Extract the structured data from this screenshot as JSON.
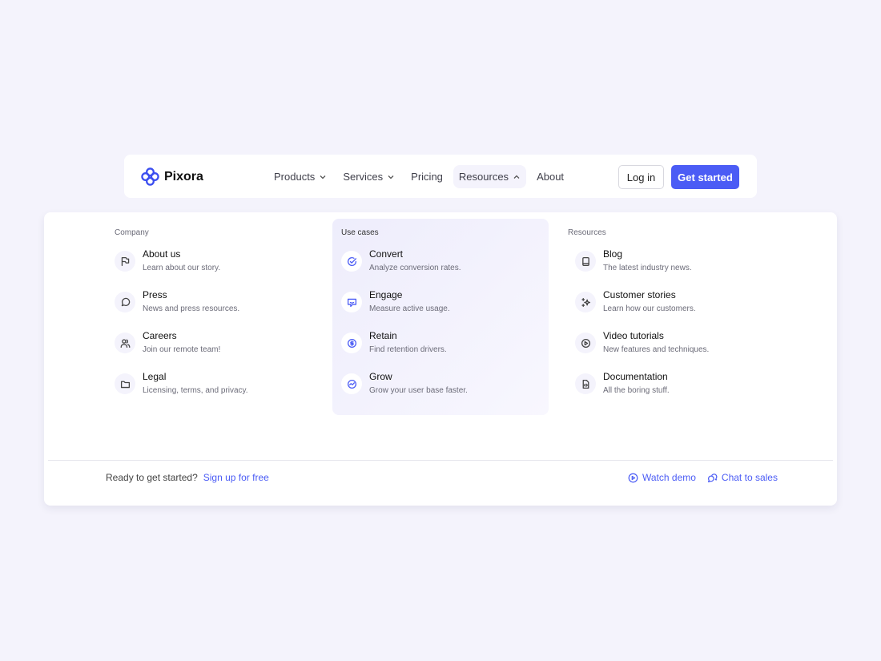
{
  "brand": {
    "name": "Pixora",
    "accent": "#4b5cf5",
    "background": "#f4f3fc"
  },
  "nav": {
    "items": [
      {
        "label": "Products",
        "dropdown": true
      },
      {
        "label": "Services",
        "dropdown": true
      },
      {
        "label": "Pricing"
      },
      {
        "label": "Resources",
        "dropdown": true,
        "open": true
      },
      {
        "label": "About"
      }
    ],
    "login": "Log in",
    "get_started": "Get started"
  },
  "menu": {
    "columns": [
      {
        "heading": "Company",
        "items": [
          {
            "title": "About us",
            "desc": "Learn about our story.",
            "icon": "flag-icon"
          },
          {
            "title": "Press",
            "desc": "News and press resources.",
            "icon": "message-circle-icon"
          },
          {
            "title": "Careers",
            "desc": "Join our remote team!",
            "icon": "users-icon"
          },
          {
            "title": "Legal",
            "desc": "Licensing, terms, and privacy.",
            "icon": "folder-icon"
          }
        ]
      },
      {
        "heading": "Use cases",
        "items": [
          {
            "title": "Convert",
            "desc": "Analyze conversion rates.",
            "icon": "check-circle-icon"
          },
          {
            "title": "Engage",
            "desc": "Measure active usage.",
            "icon": "message-smile-icon"
          },
          {
            "title": "Retain",
            "desc": "Find retention drivers.",
            "icon": "dollar-circle-icon"
          },
          {
            "title": "Grow",
            "desc": "Grow your user base faster.",
            "icon": "activity-circle-icon"
          }
        ]
      },
      {
        "heading": "Resources",
        "items": [
          {
            "title": "Blog",
            "desc": "The latest industry news.",
            "icon": "book-icon"
          },
          {
            "title": "Customer stories",
            "desc": "Learn how our customers.",
            "icon": "sparkles-icon"
          },
          {
            "title": "Video tutorials",
            "desc": "New features and techniques.",
            "icon": "play-circle-icon"
          },
          {
            "title": "Documentation",
            "desc": "All the boring stuff.",
            "icon": "file-code-icon"
          }
        ]
      }
    ]
  },
  "footer": {
    "prompt": "Ready to get started?",
    "signup": "Sign up for free",
    "watch_demo": "Watch demo",
    "chat_sales": "Chat to sales"
  }
}
